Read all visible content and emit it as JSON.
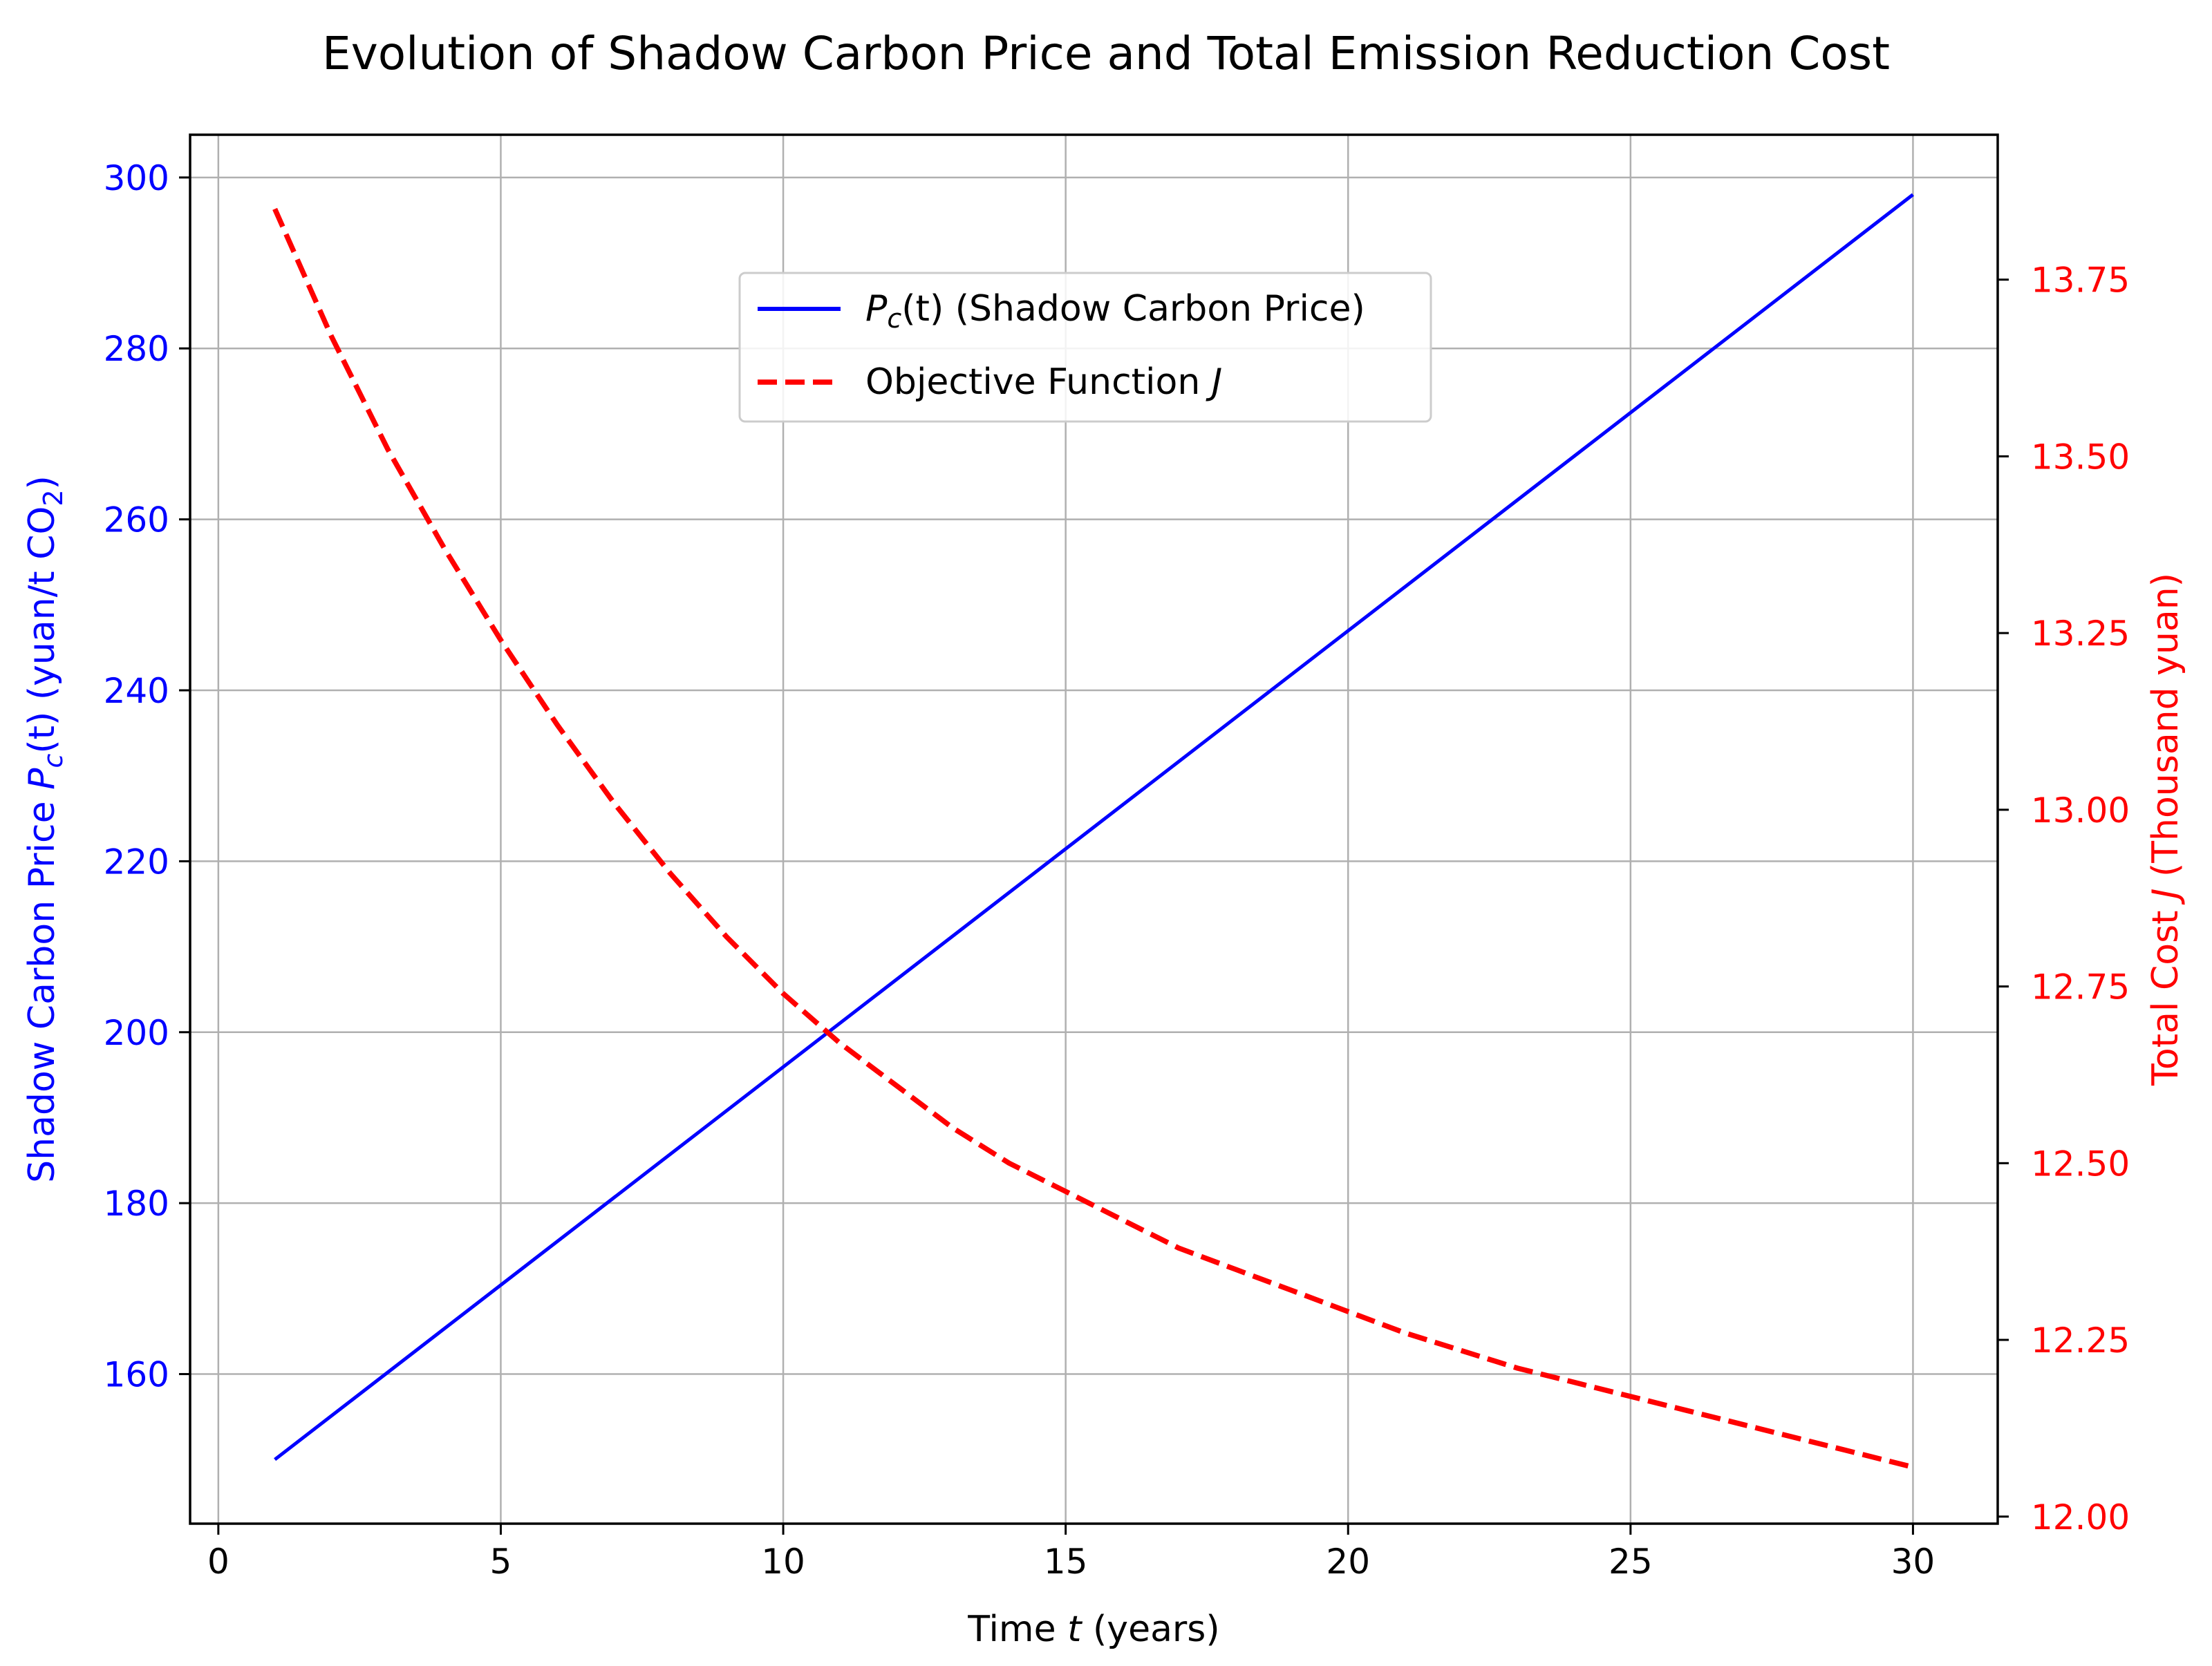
{
  "chart_data": {
    "type": "line",
    "title": "Evolution of Shadow Carbon Price and Total Emission Reduction Cost",
    "xlabel": "Time t (years)",
    "ylabel": "Shadow Carbon Price Pc(t) (yuan/t CO2)",
    "ylabel2": "Total Cost J (Thousand yuan)",
    "xlim": [
      -0.5,
      31.5
    ],
    "ylim": [
      142.5,
      305.0
    ],
    "ylim2": [
      11.99,
      13.955
    ],
    "grid": true,
    "legend_position": "upper-center",
    "x_ticks": [
      0,
      5,
      10,
      15,
      20,
      25,
      30
    ],
    "y_ticks": [
      160,
      180,
      200,
      220,
      240,
      260,
      280,
      300
    ],
    "y2_ticks": [
      12.0,
      12.25,
      12.5,
      12.75,
      13.0,
      13.25,
      13.5,
      13.75
    ],
    "y2_tick_labels": [
      "12.00",
      "12.25",
      "12.50",
      "12.75",
      "13.00",
      "13.25",
      "13.50",
      "13.75"
    ],
    "series": [
      {
        "name": "Pc(t) (Shadow Carbon Price)",
        "axis": "left",
        "color": "#0000ff",
        "style": "solid",
        "x": [
          1,
          30
        ],
        "values": [
          150.0,
          298.0
        ]
      },
      {
        "name": "Objective Function J",
        "axis": "right",
        "color": "#ff0000",
        "style": "dashed",
        "x": [
          1,
          2,
          3,
          4,
          5,
          6,
          7,
          8,
          9,
          10,
          11,
          12,
          13,
          14,
          15,
          16,
          17,
          18,
          19,
          20,
          21,
          22,
          23,
          24,
          25,
          26,
          27,
          28,
          29,
          30
        ],
        "values": [
          13.85,
          13.67,
          13.51,
          13.37,
          13.24,
          13.12,
          13.01,
          12.91,
          12.82,
          12.74,
          12.67,
          12.61,
          12.55,
          12.5,
          12.46,
          12.42,
          12.38,
          12.35,
          12.32,
          12.29,
          12.26,
          12.235,
          12.21,
          12.19,
          12.17,
          12.15,
          12.13,
          12.11,
          12.09,
          12.07
        ]
      }
    ],
    "legend": {
      "entry1": {
        "symbol": "P",
        "sub": "c",
        "rest": "(t) (Shadow Carbon Price)"
      },
      "entry2": {
        "text": "Objective Function ",
        "italic": "J"
      }
    },
    "axis_labels": {
      "x_pre": "Time ",
      "x_italic": "t",
      "x_post": " (years)",
      "left_pre": "Shadow Carbon Price ",
      "left_sym": "P",
      "left_sub": "c",
      "left_mid": "(t)",
      "left_post": " (yuan/t CO",
      "left_sub2": "2",
      "left_close": ")",
      "right_pre": "Total Cost ",
      "right_italic": "J",
      "right_post": " (Thousand yuan)"
    }
  }
}
